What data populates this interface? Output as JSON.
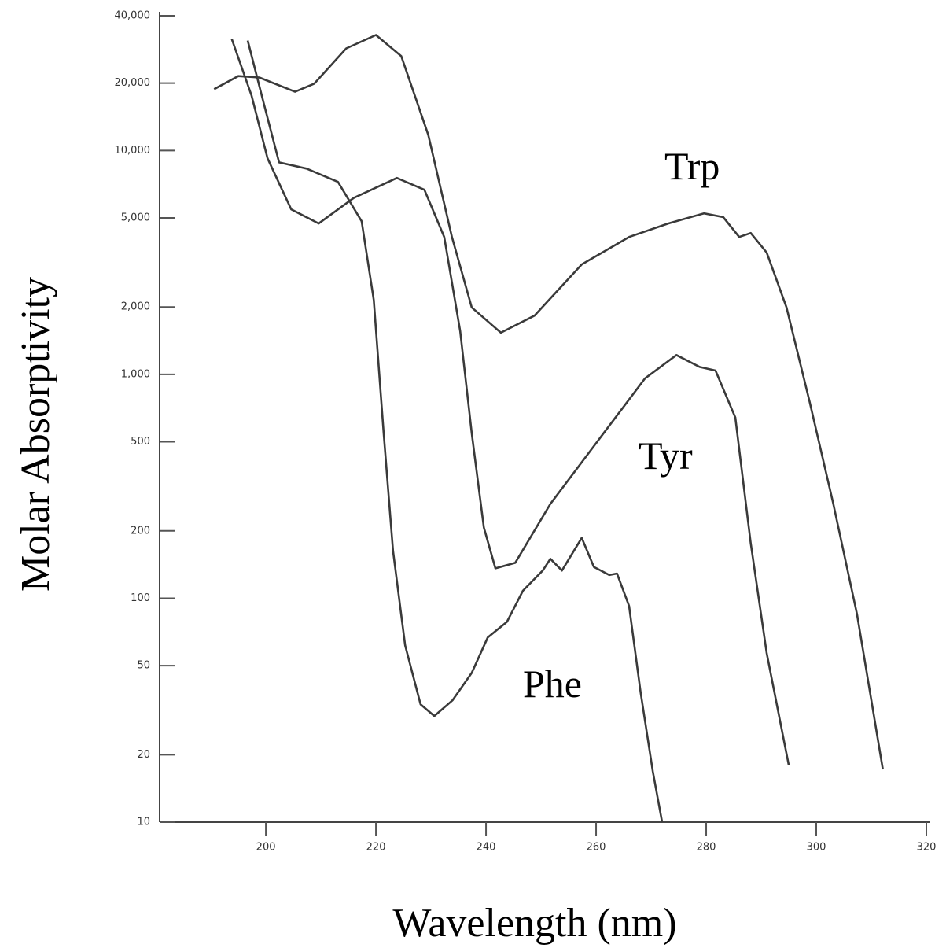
{
  "chart_data": {
    "type": "line",
    "x_label": "Wavelength (nm)",
    "y_label": "Molar Absorptivity",
    "log_y": true,
    "color": "#3a3a3a",
    "xlim": [
      180.7,
      320
    ],
    "xticks": [
      200,
      220,
      240,
      260,
      280,
      300,
      320
    ],
    "ylim": [
      10,
      40000
    ],
    "yticks": [
      10,
      20,
      50,
      100,
      200,
      500,
      {
        "value": 1000,
        "label": "1,000"
      },
      {
        "value": 2000,
        "label": "2,000"
      },
      {
        "value": 5000,
        "label": "5,000"
      },
      {
        "value": 10000,
        "label": "10,000"
      },
      {
        "value": 20000,
        "label": "20,000"
      },
      {
        "value": 40000,
        "label": "40,000"
      }
    ],
    "series": [
      {
        "name": "Trp",
        "x": [
          190.6,
          195,
          198.8,
          205.3,
          208.8,
          214.6,
          220,
          224.6,
          229.5,
          233.8,
          237.4,
          242.7,
          248.8,
          257.4,
          266,
          273.1,
          279.6,
          283.1,
          286,
          288.1,
          291,
          294.6,
          298.8,
          303.1,
          307.4,
          312.1
        ],
        "values": [
          18800,
          21500,
          21200,
          18300,
          19900,
          28600,
          32800,
          26400,
          11750,
          4110,
          1990,
          1535,
          1830,
          3100,
          4110,
          4720,
          5240,
          5040,
          4110,
          4280,
          3500,
          1990,
          754,
          264,
          85,
          17.2
        ]
      },
      {
        "name": "Tyr",
        "x": [
          193.8,
          197.4,
          200.3,
          204.6,
          209.6,
          216,
          223.8,
          228.8,
          232.4,
          235.3,
          237.4,
          239.6,
          241.7,
          245.3,
          251.7,
          260.3,
          268.9,
          274.6,
          278.8,
          281.7,
          285.3,
          288.1,
          291,
          295
        ],
        "values": [
          31500,
          17600,
          9230,
          5460,
          4720,
          6150,
          7540,
          6680,
          4110,
          1560,
          546,
          207,
          136,
          144,
          264,
          504,
          960,
          1220,
          1080,
          1040,
          641,
          176,
          56.8,
          18
        ]
      },
      {
        "name": "Phe",
        "x": [
          196.7,
          199.6,
          202.4,
          207.4,
          213.1,
          217.4,
          219.6,
          221.4,
          223.1,
          225.3,
          228.1,
          230.6,
          233.9,
          237.4,
          240.3,
          243.8,
          246.7,
          250.3,
          251.7,
          253.8,
          257.4,
          259.6,
          262.4,
          263.8,
          266,
          268.1,
          270.3,
          272
        ],
        "values": [
          31000,
          16300,
          8850,
          8300,
          7240,
          4830,
          2150,
          546,
          163,
          61.6,
          33.6,
          29.8,
          35,
          46.4,
          66.8,
          78.5,
          108,
          133,
          150,
          133,
          186,
          138,
          127,
          129,
          92.3,
          37.9,
          16.9,
          10
        ]
      }
    ]
  }
}
